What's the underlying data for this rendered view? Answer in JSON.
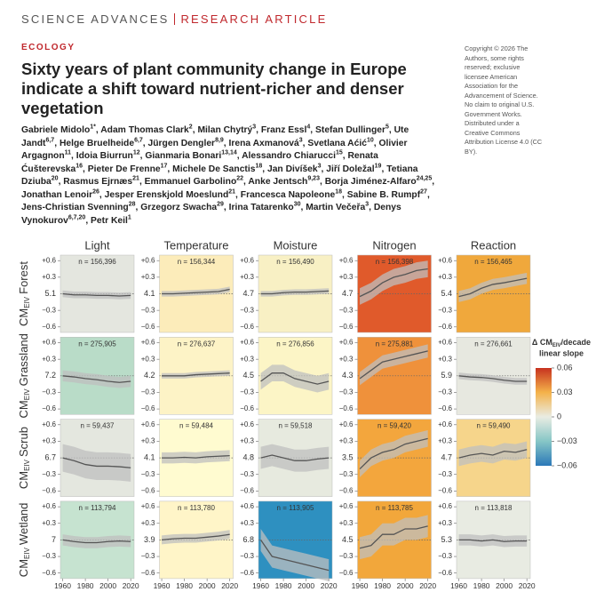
{
  "header": {
    "journal": "SCIENCE ADVANCES",
    "article_type": "RESEARCH ARTICLE",
    "section": "ECOLOGY",
    "title": "Sixty years of plant community change in Europe indicate a shift toward nutrient-richer and denser vegetation",
    "copyright": "Copyright © 2026 The Authors, some rights reserved; exclusive licensee American Association for the Advancement of Science. No claim to original U.S. Government Works. Distributed under a Creative Commons Attribution License 4.0 (CC BY)."
  },
  "authors": [
    {
      "name": "Gabriele Midolo",
      "affil": "1*"
    },
    {
      "name": "Adam Thomas Clark",
      "affil": "2"
    },
    {
      "name": "Milan Chytrý",
      "affil": "3"
    },
    {
      "name": "Franz Essl",
      "affil": "4"
    },
    {
      "name": "Stefan Dullinger",
      "affil": "5"
    },
    {
      "name": "Ute Jandt",
      "affil": "6,7"
    },
    {
      "name": "Helge Bruelheide",
      "affil": "6,7"
    },
    {
      "name": "Jürgen Dengler",
      "affil": "8,9"
    },
    {
      "name": "Irena Axmanová",
      "affil": "3"
    },
    {
      "name": "Svetlana Aćić",
      "affil": "10"
    },
    {
      "name": "Olivier Argagnon",
      "affil": "11"
    },
    {
      "name": "Idoia Biurrun",
      "affil": "12"
    },
    {
      "name": "Gianmaria Bonari",
      "affil": "13,14"
    },
    {
      "name": "Alessandro Chiarucci",
      "affil": "15"
    },
    {
      "name": "Renata Ćušterevska",
      "affil": "16"
    },
    {
      "name": "Pieter De Frenne",
      "affil": "17"
    },
    {
      "name": "Michele De Sanctis",
      "affil": "18"
    },
    {
      "name": "Jan Divíšek",
      "affil": "3"
    },
    {
      "name": "Jiří Doležal",
      "affil": "19"
    },
    {
      "name": "Tetiana Dziuba",
      "affil": "20"
    },
    {
      "name": "Rasmus Ejrnæs",
      "affil": "21"
    },
    {
      "name": "Emmanuel Garbolino",
      "affil": "22"
    },
    {
      "name": "Anke Jentsch",
      "affil": "9,23"
    },
    {
      "name": "Borja Jiménez-Alfaro",
      "affil": "24,25"
    },
    {
      "name": "Jonathan Lenoir",
      "affil": "26"
    },
    {
      "name": "Jesper Erenskjold Moeslund",
      "affil": "21"
    },
    {
      "name": "Francesca Napoleone",
      "affil": "18"
    },
    {
      "name": "Sabine B. Rumpf",
      "affil": "27"
    },
    {
      "name": "Jens-Christian Svenning",
      "affil": "28"
    },
    {
      "name": "Grzegorz Swacha",
      "affil": "29"
    },
    {
      "name": "Irina Tatarenko",
      "affil": "30"
    },
    {
      "name": "Martin Večeřa",
      "affil": "3"
    },
    {
      "name": "Denys Vynokurov",
      "affil": "6,7,20"
    },
    {
      "name": "Petr Keil",
      "affil": "1"
    }
  ],
  "chart_data": {
    "type": "line",
    "columns": [
      "Light",
      "Temperature",
      "Moisture",
      "Nitrogen",
      "Reaction"
    ],
    "row_prefix": "CM",
    "row_prefix_sub": "EIV",
    "x": [
      1960,
      1970,
      1980,
      1990,
      2000,
      2010,
      2020
    ],
    "xlim": [
      1958,
      2023
    ],
    "xticks": [
      1960,
      1980,
      2000,
      2020
    ],
    "ylim": [
      -0.7,
      0.7
    ],
    "yticks": [
      {
        "value": 0.6,
        "label": "+0.6"
      },
      {
        "value": 0.3,
        "label": "+0.3"
      },
      {
        "value": -0.3,
        "label": "−0.3"
      },
      {
        "value": -0.6,
        "label": "−0.6"
      }
    ],
    "line_color": "#555555",
    "band_color": "#bfbfbf",
    "rows": [
      {
        "name": "Forest",
        "panels": [
          {
            "n": "n = 156,396",
            "baseline": 5.1,
            "color": "#e4e6df",
            "values": [
              0,
              -0.02,
              -0.02,
              -0.03,
              -0.03,
              -0.04,
              -0.03
            ],
            "ci": 0.06
          },
          {
            "n": "n = 156,344",
            "baseline": 4.1,
            "color": "#fcecba",
            "values": [
              0,
              0,
              0.01,
              0.02,
              0.03,
              0.04,
              0.08
            ],
            "ci": 0.05
          },
          {
            "n": "n = 156,490",
            "baseline": 4.7,
            "color": "#f8f0c4",
            "values": [
              0,
              0,
              0.02,
              0.03,
              0.03,
              0.04,
              0.05
            ],
            "ci": 0.05
          },
          {
            "n": "n = 156,398",
            "baseline": 4.7,
            "color": "#e05a2b",
            "values": [
              -0.05,
              0.05,
              0.2,
              0.3,
              0.35,
              0.42,
              0.45
            ],
            "ci": 0.15
          },
          {
            "n": "n = 156,465",
            "baseline": 5.4,
            "color": "#f0a83c",
            "values": [
              -0.05,
              0,
              0.1,
              0.17,
              0.2,
              0.24,
              0.28
            ],
            "ci": 0.1
          }
        ]
      },
      {
        "name": "Grassland",
        "panels": [
          {
            "n": "n = 275,905",
            "baseline": 7.2,
            "color": "#b9dcc8",
            "values": [
              0,
              -0.02,
              -0.05,
              -0.07,
              -0.1,
              -0.12,
              -0.1
            ],
            "ci": 0.1
          },
          {
            "n": "n = 276,637",
            "baseline": 4.2,
            "color": "#fdf3c6",
            "values": [
              0,
              0,
              0,
              0.02,
              0.03,
              0.04,
              0.05
            ],
            "ci": 0.05
          },
          {
            "n": "n = 276,856",
            "baseline": 4.5,
            "color": "#fcf5c6",
            "values": [
              -0.1,
              0.05,
              0.05,
              -0.05,
              -0.1,
              -0.15,
              -0.1
            ],
            "ci": 0.15
          },
          {
            "n": "n = 275,881",
            "baseline": 4.3,
            "color": "#ef913b",
            "values": [
              -0.05,
              0.1,
              0.25,
              0.3,
              0.35,
              0.4,
              0.45
            ],
            "ci": 0.12
          },
          {
            "n": "n = 276,661",
            "baseline": 5.9,
            "color": "#e7e8e0",
            "values": [
              0,
              -0.02,
              -0.03,
              -0.05,
              -0.08,
              -0.1,
              -0.1
            ],
            "ci": 0.06
          }
        ]
      },
      {
        "name": "Scrub",
        "panels": [
          {
            "n": "n = 59,437",
            "baseline": 6.7,
            "color": "#e4e7df",
            "values": [
              0,
              -0.05,
              -0.12,
              -0.15,
              -0.15,
              -0.16,
              -0.18
            ],
            "ci": 0.25
          },
          {
            "n": "n = 59,484",
            "baseline": 4.1,
            "color": "#fffbd0",
            "values": [
              0,
              0,
              0.01,
              0,
              0.02,
              0.03,
              0.04
            ],
            "ci": 0.1
          },
          {
            "n": "n = 59,518",
            "baseline": 4.8,
            "color": "#e7eadf",
            "values": [
              0,
              0.05,
              0,
              -0.05,
              -0.05,
              -0.02,
              0
            ],
            "ci": 0.2
          },
          {
            "n": "n = 59,420",
            "baseline": 3.5,
            "color": "#f3a63d",
            "values": [
              -0.2,
              0,
              0.1,
              0.15,
              0.25,
              0.3,
              0.35
            ],
            "ci": 0.15
          },
          {
            "n": "n = 59,490",
            "baseline": 4.7,
            "color": "#f6d58b",
            "values": [
              0,
              0.05,
              0.08,
              0.05,
              0.12,
              0.1,
              0.15
            ],
            "ci": 0.15
          }
        ]
      },
      {
        "name": "Wetland",
        "panels": [
          {
            "n": "n = 113,794",
            "baseline": 7.0,
            "color": "#c6e3d0",
            "values": [
              0,
              -0.03,
              -0.05,
              -0.05,
              -0.03,
              -0.02,
              -0.03
            ],
            "ci": 0.1
          },
          {
            "n": "n = 113,780",
            "baseline": 3.9,
            "color": "#fff5c8",
            "values": [
              0,
              0.02,
              0.03,
              0.03,
              0.05,
              0.07,
              0.1
            ],
            "ci": 0.08
          },
          {
            "n": "n = 113,905",
            "baseline": 6.8,
            "color": "#2e90c0",
            "values": [
              0,
              -0.3,
              -0.35,
              -0.4,
              -0.45,
              -0.5,
              -0.55
            ],
            "ci": 0.2
          },
          {
            "n": "n = 113,785",
            "baseline": 4.5,
            "color": "#f2a73b",
            "values": [
              -0.15,
              -0.1,
              0.1,
              0.1,
              0.2,
              0.2,
              0.25
            ],
            "ci": 0.2
          },
          {
            "n": "n = 113,818",
            "baseline": 5.3,
            "color": "#e8ebe2",
            "values": [
              0,
              0,
              -0.02,
              0,
              -0.03,
              -0.02,
              -0.02
            ],
            "ci": 0.1
          }
        ]
      }
    ],
    "colorbar": {
      "title": "Δ CM",
      "title_sub": "EIV",
      "title_end": "/decade",
      "subtitle": "linear slope",
      "lim": [
        -0.06,
        0.06
      ],
      "ticks": [
        {
          "value": 0.06,
          "label": "0.06"
        },
        {
          "value": 0.03,
          "label": "0.03"
        },
        0,
        {
          "value": -0.03,
          "label": "−0.03"
        },
        {
          "value": -0.06,
          "label": "−0.06"
        }
      ],
      "colors": [
        "#2b78b8",
        "#86c6c6",
        "#e9ece3",
        "#f4b24a",
        "#c7321f"
      ]
    }
  }
}
